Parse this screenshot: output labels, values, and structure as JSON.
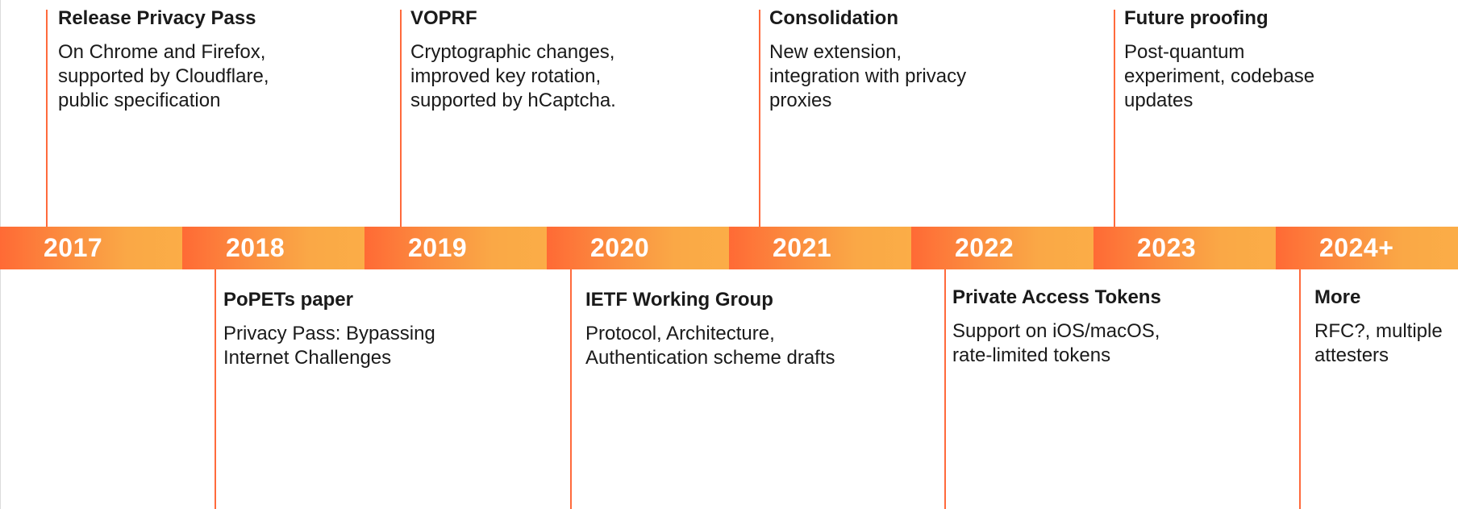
{
  "colors": {
    "band_start": "#ff6a35",
    "band_end": "#fbad47",
    "connector": "#ff6a3c",
    "year_text": "#ffffff"
  },
  "years": [
    "2017",
    "2018",
    "2019",
    "2020",
    "2021",
    "2022",
    "2023",
    "2024+"
  ],
  "events_above": [
    {
      "title": "Release Privacy Pass",
      "description": "On Chrome and Firefox,\nsupported by Cloudflare,\npublic specification"
    },
    {
      "title": "VOPRF",
      "description": "Cryptographic changes,\nimproved key rotation,\nsupported by hCaptcha."
    },
    {
      "title": "Consolidation",
      "description": "New extension,\nintegration with privacy\nproxies"
    },
    {
      "title": "Future proofing",
      "description": "Post-quantum\nexperiment, codebase\nupdates"
    }
  ],
  "events_below": [
    {
      "title": "PoPETs paper",
      "description": "Privacy Pass: Bypassing\nInternet Challenges"
    },
    {
      "title": "IETF Working Group",
      "description": "Protocol, Architecture,\nAuthentication scheme drafts"
    },
    {
      "title": "Private Access Tokens",
      "description": "Support on iOS/macOS,\nrate-limited tokens"
    },
    {
      "title": "More",
      "description": "RFC?, multiple\nattesters"
    }
  ]
}
